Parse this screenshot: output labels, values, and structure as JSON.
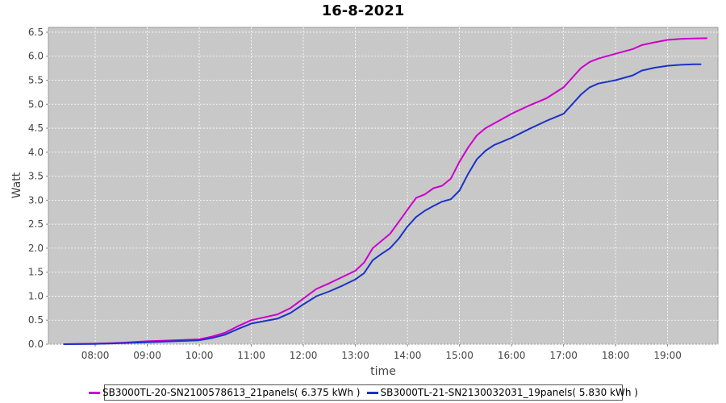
{
  "chart_data": {
    "type": "line",
    "title": "16-8-2021",
    "xlabel": "time",
    "ylabel": "Watt",
    "x_ticks": [
      "08:00",
      "09:00",
      "10:00",
      "11:00",
      "12:00",
      "13:00",
      "14:00",
      "15:00",
      "16:00",
      "17:00",
      "18:00",
      "19:00"
    ],
    "y_ticks": [
      "0.0",
      "0.5",
      "1.0",
      "1.5",
      "2.0",
      "2.5",
      "3.0",
      "3.5",
      "4.0",
      "4.5",
      "5.0",
      "5.5",
      "6.0",
      "6.5"
    ],
    "xlim": [
      "07:06",
      "19:58"
    ],
    "ylim": [
      0,
      6.6
    ],
    "grid": true,
    "legend_position": "bottom",
    "series": [
      {
        "name": "SB3000TL-20-SN2100578613_21panels( 6.375 kWh )",
        "color": "#cc00cc",
        "x": [
          "07:24",
          "08:00",
          "08:30",
          "09:00",
          "09:30",
          "10:00",
          "10:15",
          "10:30",
          "10:45",
          "11:00",
          "11:15",
          "11:30",
          "11:45",
          "12:00",
          "12:15",
          "12:30",
          "12:45",
          "13:00",
          "13:10",
          "13:20",
          "13:30",
          "13:40",
          "13:50",
          "14:00",
          "14:10",
          "14:20",
          "14:30",
          "14:40",
          "14:50",
          "15:00",
          "15:10",
          "15:20",
          "15:30",
          "15:40",
          "16:00",
          "16:20",
          "16:40",
          "17:00",
          "17:10",
          "17:20",
          "17:30",
          "17:40",
          "18:00",
          "18:20",
          "18:30",
          "18:45",
          "19:00",
          "19:15",
          "19:30",
          "19:45"
        ],
        "values": [
          0.0,
          0.01,
          0.03,
          0.06,
          0.08,
          0.1,
          0.16,
          0.24,
          0.38,
          0.5,
          0.56,
          0.62,
          0.75,
          0.95,
          1.15,
          1.27,
          1.4,
          1.53,
          1.7,
          2.0,
          2.15,
          2.3,
          2.55,
          2.8,
          3.05,
          3.12,
          3.25,
          3.3,
          3.45,
          3.8,
          4.1,
          4.35,
          4.5,
          4.6,
          4.8,
          4.97,
          5.12,
          5.35,
          5.55,
          5.75,
          5.88,
          5.95,
          6.05,
          6.15,
          6.23,
          6.29,
          6.34,
          6.36,
          6.37,
          6.375
        ]
      },
      {
        "name": "SB3000TL-21-SN2130032031_19panels( 5.830 kWh )",
        "color": "#1c32c8",
        "x": [
          "07:24",
          "08:00",
          "08:30",
          "09:00",
          "09:30",
          "10:00",
          "10:15",
          "10:30",
          "10:45",
          "11:00",
          "11:15",
          "11:30",
          "11:45",
          "12:00",
          "12:15",
          "12:30",
          "12:45",
          "13:00",
          "13:10",
          "13:20",
          "13:30",
          "13:40",
          "13:50",
          "14:00",
          "14:10",
          "14:20",
          "14:30",
          "14:40",
          "14:50",
          "15:00",
          "15:10",
          "15:20",
          "15:30",
          "15:40",
          "16:00",
          "16:20",
          "16:40",
          "17:00",
          "17:10",
          "17:20",
          "17:30",
          "17:40",
          "18:00",
          "18:20",
          "18:30",
          "18:45",
          "19:00",
          "19:15",
          "19:30",
          "19:38"
        ],
        "values": [
          0.0,
          0.005,
          0.02,
          0.04,
          0.06,
          0.08,
          0.13,
          0.2,
          0.32,
          0.43,
          0.48,
          0.53,
          0.65,
          0.83,
          1.0,
          1.1,
          1.22,
          1.35,
          1.48,
          1.75,
          1.88,
          2.0,
          2.2,
          2.45,
          2.65,
          2.78,
          2.88,
          2.97,
          3.02,
          3.2,
          3.55,
          3.85,
          4.03,
          4.15,
          4.3,
          4.48,
          4.65,
          4.8,
          5.0,
          5.2,
          5.35,
          5.43,
          5.5,
          5.6,
          5.7,
          5.76,
          5.8,
          5.82,
          5.83,
          5.83
        ]
      }
    ]
  }
}
